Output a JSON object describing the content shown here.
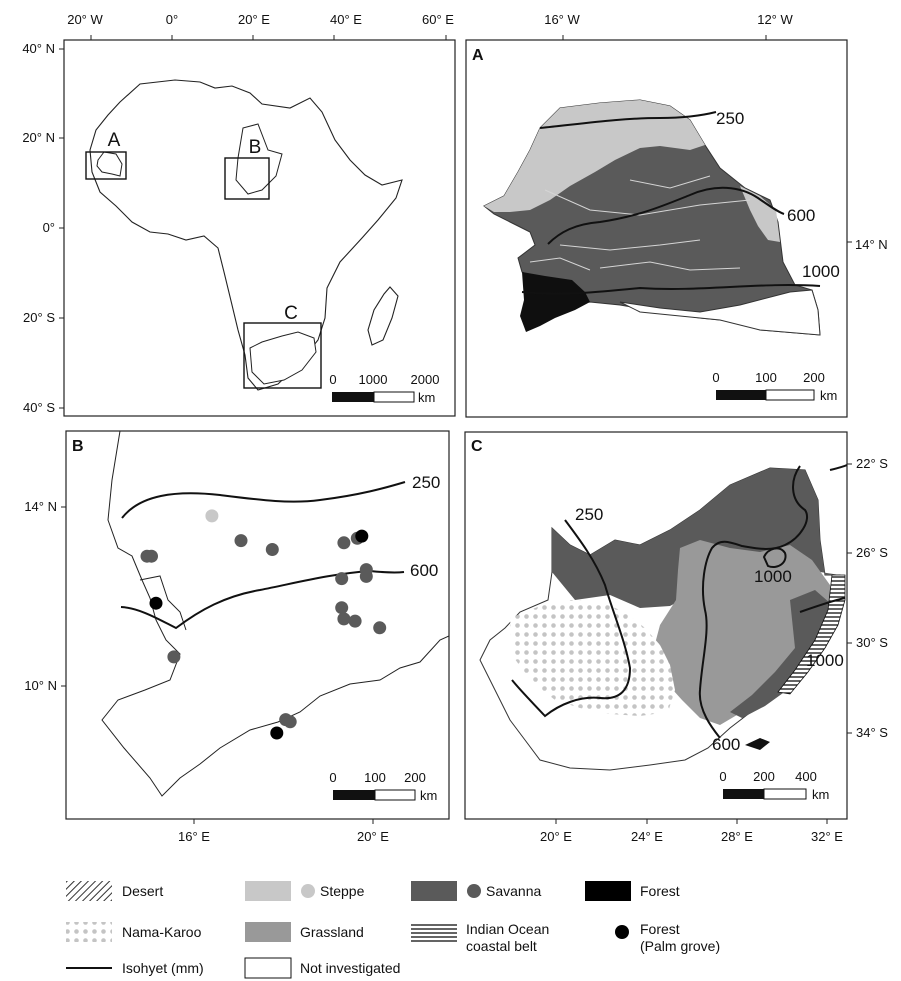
{
  "colors": {
    "savanna": "#5a5a5a",
    "steppe": "#c8c8c8",
    "grassland": "#999999",
    "forest": "#000000",
    "nama_karoo_dots": "#c4c4c4",
    "isohyet_line": "#111111",
    "frame": "#222222"
  },
  "overview": {
    "lon_ticks": [
      "20° W",
      "0°",
      "20° E",
      "40° E",
      "60° E"
    ],
    "lat_ticks": [
      "40° N",
      "20° N",
      "0°",
      "20° S",
      "40° S"
    ],
    "box_labels": [
      "A",
      "B",
      "C"
    ],
    "scale": {
      "labels": [
        "0",
        "1000",
        "2000"
      ],
      "unit": "km"
    }
  },
  "panel_a": {
    "letter": "A",
    "lon_ticks": [
      "16° W",
      "12° W"
    ],
    "lat_ticks": [
      "14° N"
    ],
    "isohyet_labels": [
      "250",
      "600",
      "1000"
    ],
    "scale": {
      "labels": [
        "0",
        "100",
        "200"
      ],
      "unit": "km"
    }
  },
  "panel_b": {
    "letter": "B",
    "lat_ticks": [
      "14° N",
      "10° N"
    ],
    "lon_ticks": [
      "16° E",
      "20° E"
    ],
    "isohyet_labels": [
      "250",
      "600"
    ],
    "scale": {
      "labels": [
        "0",
        "100",
        "200"
      ],
      "unit": "km"
    },
    "sites": [
      {
        "type": "steppe",
        "lon": 16.4,
        "lat": 13.8
      },
      {
        "type": "savanna",
        "lon": 14.95,
        "lat": 12.9
      },
      {
        "type": "savanna",
        "lon": 15.05,
        "lat": 12.9
      },
      {
        "type": "savanna",
        "lon": 17.05,
        "lat": 13.25
      },
      {
        "type": "savanna",
        "lon": 17.75,
        "lat": 13.05
      },
      {
        "type": "savanna",
        "lon": 19.35,
        "lat": 13.2
      },
      {
        "type": "savanna",
        "lon": 19.65,
        "lat": 13.3
      },
      {
        "type": "forest_palm",
        "lon": 19.75,
        "lat": 13.35
      },
      {
        "type": "savanna",
        "lon": 19.85,
        "lat": 12.6
      },
      {
        "type": "savanna",
        "lon": 19.85,
        "lat": 12.45
      },
      {
        "type": "savanna",
        "lon": 19.3,
        "lat": 12.4
      },
      {
        "type": "savanna",
        "lon": 19.3,
        "lat": 11.75
      },
      {
        "type": "savanna",
        "lon": 19.35,
        "lat": 11.5
      },
      {
        "type": "savanna",
        "lon": 19.6,
        "lat": 11.45
      },
      {
        "type": "savanna",
        "lon": 20.15,
        "lat": 11.3
      },
      {
        "type": "forest_palm",
        "lon": 15.15,
        "lat": 11.85
      },
      {
        "type": "savanna",
        "lon": 15.55,
        "lat": 10.65
      },
      {
        "type": "savanna",
        "lon": 18.05,
        "lat": 9.25
      },
      {
        "type": "savanna",
        "lon": 18.15,
        "lat": 9.2
      },
      {
        "type": "forest_palm",
        "lon": 17.85,
        "lat": 8.95
      }
    ]
  },
  "panel_c": {
    "letter": "C",
    "lon_ticks": [
      "20° E",
      "24° E",
      "28° E",
      "32° E"
    ],
    "lat_ticks": [
      "22° S",
      "26° S",
      "30° S",
      "34° S"
    ],
    "isohyet_labels": [
      "250",
      "1000",
      "1000",
      "600"
    ],
    "scale": {
      "labels": [
        "0",
        "200",
        "400"
      ],
      "unit": "km"
    }
  },
  "legend": {
    "desert": "Desert",
    "nama_karoo": "Nama-Karoo",
    "isohyet": "Isohyet (mm)",
    "steppe": "Steppe",
    "grassland": "Grassland",
    "not_investigated": "Not investigated",
    "savanna": "Savanna",
    "indian_ocean_1": "Indian Ocean",
    "indian_ocean_2": "coastal belt",
    "forest": "Forest",
    "forest_palm_1": "Forest",
    "forest_palm_2": "(Palm grove)"
  }
}
